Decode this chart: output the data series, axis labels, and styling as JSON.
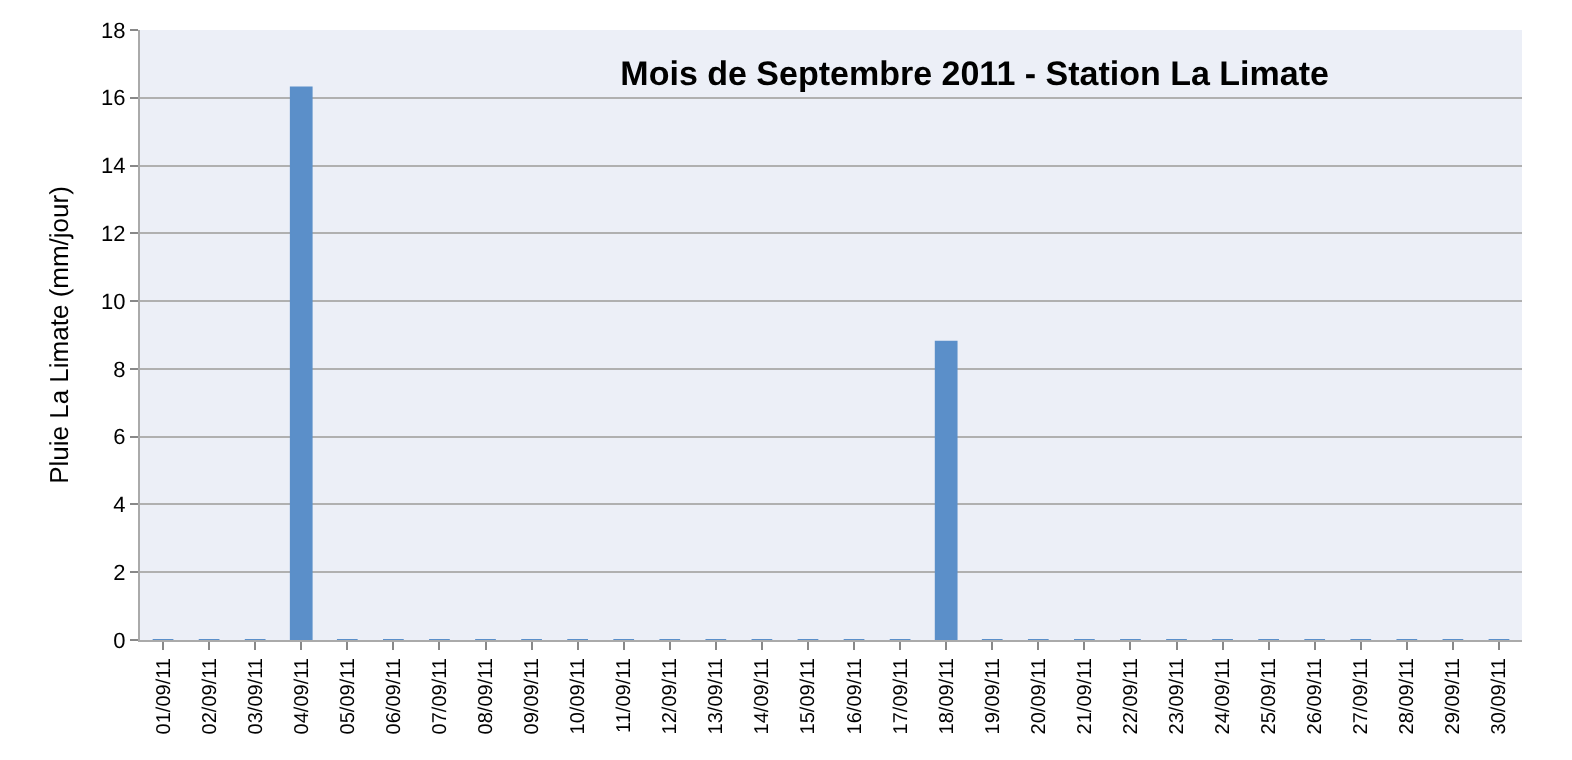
{
  "chart_data": {
    "type": "bar",
    "title": "Mois de Septembre 2011 - Station La Limate",
    "ylabel": "Pluie La Limate (mm/jour)",
    "categories": [
      "01/09/11",
      "02/09/11",
      "03/09/11",
      "04/09/11",
      "05/09/11",
      "06/09/11",
      "07/09/11",
      "08/09/11",
      "09/09/11",
      "10/09/11",
      "11/09/11",
      "12/09/11",
      "13/09/11",
      "14/09/11",
      "15/09/11",
      "16/09/11",
      "17/09/11",
      "18/09/11",
      "19/09/11",
      "20/09/11",
      "21/09/11",
      "22/09/11",
      "23/09/11",
      "24/09/11",
      "25/09/11",
      "26/09/11",
      "27/09/11",
      "28/09/11",
      "29/09/11",
      "30/09/11"
    ],
    "values": [
      0,
      0,
      0,
      16.3,
      0,
      0,
      0,
      0,
      0,
      0,
      0,
      0,
      0,
      0,
      0,
      0,
      0,
      8.8,
      0,
      0,
      0,
      0,
      0,
      0,
      0,
      0,
      0,
      0,
      0,
      0
    ],
    "color": "#5b8fc9",
    "ylim": [
      0,
      18
    ],
    "yticks": [
      0,
      2,
      4,
      6,
      8,
      10,
      12,
      14,
      16,
      18
    ],
    "grid": "y"
  }
}
